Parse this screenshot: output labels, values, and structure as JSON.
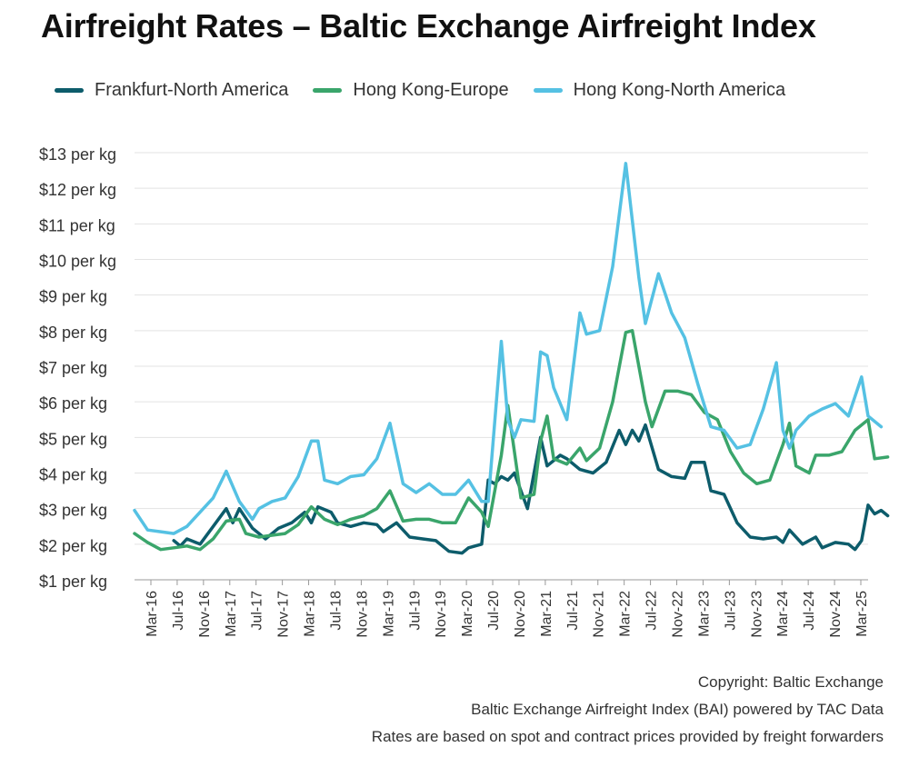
{
  "chart_data": {
    "type": "line",
    "title": "Airfreight Rates – Baltic Exchange Airfreight Index",
    "xlabel": "",
    "ylabel": "",
    "ylim": [
      1,
      13
    ],
    "y_ticks": [
      1,
      2,
      3,
      4,
      5,
      6,
      7,
      8,
      9,
      10,
      11,
      12,
      13
    ],
    "y_tick_format": "${v} per kg",
    "y_tick_labels": [
      "$1 per kg",
      "$2 per kg",
      "$3 per kg",
      "$4 per kg",
      "$5 per kg",
      "$6 per kg",
      "$7 per kg",
      "$8 per kg",
      "$9 per kg",
      "$10 per kg",
      "$11 per kg",
      "$12 per kg",
      "$13 per kg"
    ],
    "grid": "horizontal",
    "legend_position": "top",
    "x_tick_labels": [
      "Mar-16",
      "Jul-16",
      "Nov-16",
      "Mar-17",
      "Jul-17",
      "Nov-17",
      "Mar-18",
      "Jul-18",
      "Nov-18",
      "Mar-19",
      "Jul-19",
      "Nov-19",
      "Mar-20",
      "Jul-20",
      "Nov-20",
      "Mar-21",
      "Jul-21",
      "Nov-21",
      "Mar-22",
      "Jul-22",
      "Nov-22",
      "Mar-23",
      "Jul-23",
      "Nov-23",
      "Mar-24",
      "Jul-24",
      "Nov-24",
      "Mar-25"
    ],
    "x_start": "2015-11",
    "x_end": "2025-03",
    "series": [
      {
        "name": "Frankfurt-North America",
        "color": "#0d5c6b",
        "points": [
          [
            "2016-05",
            2.1
          ],
          [
            "2016-06",
            1.95
          ],
          [
            "2016-07",
            2.15
          ],
          [
            "2016-09",
            2.0
          ],
          [
            "2016-11",
            2.5
          ],
          [
            "2017-01",
            3.0
          ],
          [
            "2017-02",
            2.6
          ],
          [
            "2017-03",
            3.0
          ],
          [
            "2017-05",
            2.45
          ],
          [
            "2017-07",
            2.15
          ],
          [
            "2017-09",
            2.45
          ],
          [
            "2017-11",
            2.6
          ],
          [
            "2018-01",
            2.9
          ],
          [
            "2018-02",
            2.6
          ],
          [
            "2018-03",
            3.05
          ],
          [
            "2018-05",
            2.9
          ],
          [
            "2018-06",
            2.6
          ],
          [
            "2018-08",
            2.5
          ],
          [
            "2018-10",
            2.6
          ],
          [
            "2018-12",
            2.55
          ],
          [
            "2019-01",
            2.35
          ],
          [
            "2019-03",
            2.6
          ],
          [
            "2019-05",
            2.2
          ],
          [
            "2019-07",
            2.15
          ],
          [
            "2019-09",
            2.1
          ],
          [
            "2019-11",
            1.8
          ],
          [
            "2020-01",
            1.75
          ],
          [
            "2020-02",
            1.9
          ],
          [
            "2020-04",
            2.0
          ],
          [
            "2020-05",
            3.8
          ],
          [
            "2020-06",
            3.7
          ],
          [
            "2020-07",
            3.9
          ],
          [
            "2020-08",
            3.8
          ],
          [
            "2020-09",
            4.0
          ],
          [
            "2020-11",
            3.0
          ],
          [
            "2021-01",
            5.0
          ],
          [
            "2021-02",
            4.2
          ],
          [
            "2021-04",
            4.5
          ],
          [
            "2021-05",
            4.4
          ],
          [
            "2021-07",
            4.1
          ],
          [
            "2021-09",
            4.0
          ],
          [
            "2021-11",
            4.3
          ],
          [
            "2022-01",
            5.2
          ],
          [
            "2022-02",
            4.8
          ],
          [
            "2022-03",
            5.2
          ],
          [
            "2022-04",
            4.9
          ],
          [
            "2022-05",
            5.35
          ],
          [
            "2022-07",
            4.1
          ],
          [
            "2022-09",
            3.9
          ],
          [
            "2022-11",
            3.85
          ],
          [
            "2022-12",
            4.3
          ],
          [
            "2023-02",
            4.3
          ],
          [
            "2023-03",
            3.5
          ],
          [
            "2023-05",
            3.4
          ],
          [
            "2023-07",
            2.6
          ],
          [
            "2023-09",
            2.2
          ],
          [
            "2023-11",
            2.15
          ],
          [
            "2024-01",
            2.2
          ],
          [
            "2024-02",
            2.05
          ],
          [
            "2024-03",
            2.4
          ],
          [
            "2024-05",
            2.0
          ],
          [
            "2024-07",
            2.2
          ],
          [
            "2024-08",
            1.9
          ],
          [
            "2024-10",
            2.05
          ],
          [
            "2024-12",
            2.0
          ],
          [
            "2025-01",
            1.85
          ],
          [
            "2025-02",
            2.1
          ],
          [
            "2025-03",
            3.1
          ],
          [
            "2025-04",
            2.85
          ],
          [
            "2025-05",
            2.95
          ],
          [
            "2025-06",
            2.8
          ]
        ]
      },
      {
        "name": "Hong Kong-Europe",
        "color": "#3aa56b",
        "points": [
          [
            "2015-11",
            2.3
          ],
          [
            "2016-01",
            2.05
          ],
          [
            "2016-03",
            1.85
          ],
          [
            "2016-05",
            1.9
          ],
          [
            "2016-07",
            1.95
          ],
          [
            "2016-09",
            1.85
          ],
          [
            "2016-11",
            2.15
          ],
          [
            "2017-01",
            2.65
          ],
          [
            "2017-03",
            2.7
          ],
          [
            "2017-04",
            2.3
          ],
          [
            "2017-06",
            2.2
          ],
          [
            "2017-08",
            2.25
          ],
          [
            "2017-10",
            2.3
          ],
          [
            "2017-12",
            2.55
          ],
          [
            "2018-02",
            3.05
          ],
          [
            "2018-04",
            2.7
          ],
          [
            "2018-06",
            2.55
          ],
          [
            "2018-08",
            2.7
          ],
          [
            "2018-10",
            2.8
          ],
          [
            "2018-12",
            3.0
          ],
          [
            "2019-02",
            3.5
          ],
          [
            "2019-04",
            2.65
          ],
          [
            "2019-06",
            2.7
          ],
          [
            "2019-08",
            2.7
          ],
          [
            "2019-10",
            2.6
          ],
          [
            "2019-12",
            2.6
          ],
          [
            "2020-02",
            3.3
          ],
          [
            "2020-04",
            2.9
          ],
          [
            "2020-05",
            2.5
          ],
          [
            "2020-07",
            4.5
          ],
          [
            "2020-08",
            5.9
          ],
          [
            "2020-09",
            4.6
          ],
          [
            "2020-10",
            3.3
          ],
          [
            "2020-12",
            3.4
          ],
          [
            "2021-01",
            4.9
          ],
          [
            "2021-02",
            5.6
          ],
          [
            "2021-03",
            4.4
          ],
          [
            "2021-05",
            4.25
          ],
          [
            "2021-07",
            4.7
          ],
          [
            "2021-08",
            4.35
          ],
          [
            "2021-10",
            4.7
          ],
          [
            "2021-12",
            6.0
          ],
          [
            "2022-02",
            7.95
          ],
          [
            "2022-03",
            8.0
          ],
          [
            "2022-05",
            6.0
          ],
          [
            "2022-06",
            5.3
          ],
          [
            "2022-08",
            6.3
          ],
          [
            "2022-10",
            6.3
          ],
          [
            "2022-12",
            6.2
          ],
          [
            "2023-02",
            5.7
          ],
          [
            "2023-04",
            5.5
          ],
          [
            "2023-06",
            4.6
          ],
          [
            "2023-08",
            4.0
          ],
          [
            "2023-10",
            3.7
          ],
          [
            "2023-12",
            3.8
          ],
          [
            "2024-02",
            4.8
          ],
          [
            "2024-03",
            5.4
          ],
          [
            "2024-04",
            4.2
          ],
          [
            "2024-05",
            4.1
          ],
          [
            "2024-06",
            4.0
          ],
          [
            "2024-07",
            4.5
          ],
          [
            "2024-09",
            4.5
          ],
          [
            "2024-11",
            4.6
          ],
          [
            "2025-01",
            5.2
          ],
          [
            "2025-03",
            5.5
          ],
          [
            "2025-04",
            4.4
          ],
          [
            "2025-06",
            4.45
          ]
        ]
      },
      {
        "name": "Hong Kong-North America",
        "color": "#55c1e3",
        "points": [
          [
            "2015-11",
            2.95
          ],
          [
            "2016-01",
            2.4
          ],
          [
            "2016-03",
            2.35
          ],
          [
            "2016-05",
            2.3
          ],
          [
            "2016-07",
            2.5
          ],
          [
            "2016-09",
            2.9
          ],
          [
            "2016-11",
            3.3
          ],
          [
            "2017-01",
            4.05
          ],
          [
            "2017-03",
            3.2
          ],
          [
            "2017-05",
            2.7
          ],
          [
            "2017-06",
            3.0
          ],
          [
            "2017-08",
            3.2
          ],
          [
            "2017-10",
            3.3
          ],
          [
            "2017-12",
            3.9
          ],
          [
            "2018-02",
            4.9
          ],
          [
            "2018-03",
            4.9
          ],
          [
            "2018-04",
            3.8
          ],
          [
            "2018-06",
            3.7
          ],
          [
            "2018-08",
            3.9
          ],
          [
            "2018-10",
            3.95
          ],
          [
            "2018-12",
            4.4
          ],
          [
            "2019-02",
            5.4
          ],
          [
            "2019-04",
            3.7
          ],
          [
            "2019-06",
            3.45
          ],
          [
            "2019-08",
            3.7
          ],
          [
            "2019-10",
            3.4
          ],
          [
            "2019-12",
            3.4
          ],
          [
            "2020-02",
            3.8
          ],
          [
            "2020-04",
            3.2
          ],
          [
            "2020-05",
            3.2
          ],
          [
            "2020-07",
            7.7
          ],
          [
            "2020-08",
            5.5
          ],
          [
            "2020-09",
            5.0
          ],
          [
            "2020-10",
            5.5
          ],
          [
            "2020-12",
            5.45
          ],
          [
            "2021-01",
            7.4
          ],
          [
            "2021-02",
            7.3
          ],
          [
            "2021-03",
            6.4
          ],
          [
            "2021-05",
            5.5
          ],
          [
            "2021-07",
            8.5
          ],
          [
            "2021-08",
            7.9
          ],
          [
            "2021-10",
            8.0
          ],
          [
            "2021-12",
            9.8
          ],
          [
            "2022-02",
            12.7
          ],
          [
            "2022-04",
            9.5
          ],
          [
            "2022-05",
            8.2
          ],
          [
            "2022-07",
            9.6
          ],
          [
            "2022-09",
            8.5
          ],
          [
            "2022-11",
            7.8
          ],
          [
            "2023-01",
            6.5
          ],
          [
            "2023-03",
            5.3
          ],
          [
            "2023-05",
            5.2
          ],
          [
            "2023-07",
            4.7
          ],
          [
            "2023-09",
            4.8
          ],
          [
            "2023-11",
            5.8
          ],
          [
            "2024-01",
            7.1
          ],
          [
            "2024-02",
            5.2
          ],
          [
            "2024-03",
            4.7
          ],
          [
            "2024-04",
            5.2
          ],
          [
            "2024-06",
            5.6
          ],
          [
            "2024-08",
            5.8
          ],
          [
            "2024-10",
            5.95
          ],
          [
            "2024-12",
            5.6
          ],
          [
            "2025-02",
            6.7
          ],
          [
            "2025-03",
            5.6
          ],
          [
            "2025-05",
            5.3
          ]
        ]
      }
    ],
    "footer": [
      "Copyright: Baltic Exchange",
      "Baltic Exchange Airfreight Index (BAI) powered by TAC Data",
      "Rates are based on spot and contract prices provided by freight forwarders"
    ]
  }
}
